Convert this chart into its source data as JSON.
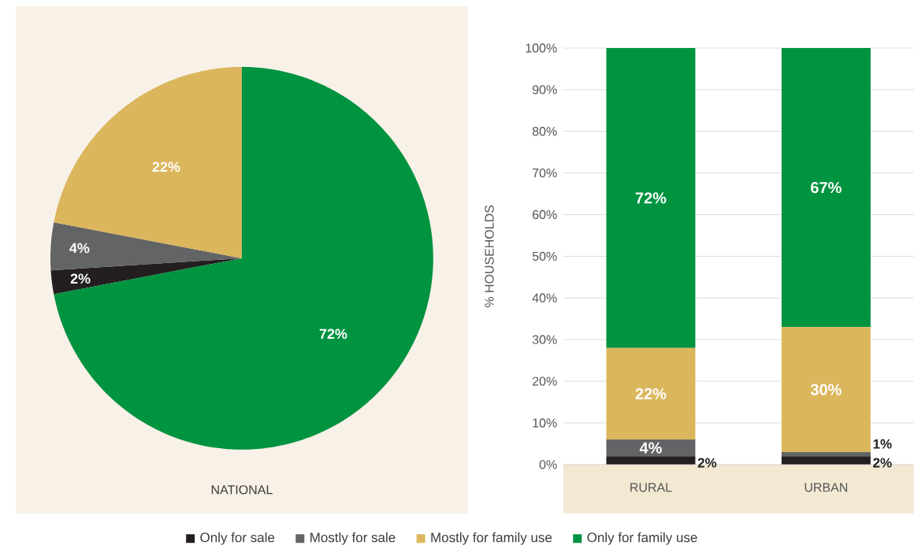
{
  "chart_data": [
    {
      "type": "pie",
      "xlabel": "NATIONAL",
      "categories": [
        "Only for sale",
        "Mostly for sale",
        "Mostly for family use",
        "Only for family use"
      ],
      "values": [
        2,
        4,
        22,
        72
      ],
      "colors": [
        "#231f20",
        "#636466",
        "#dbb65c",
        "#009340"
      ],
      "value_labels": [
        "2%",
        "4%",
        "22%",
        "72%"
      ],
      "legend": "bottom"
    },
    {
      "type": "bar",
      "stacked": true,
      "ylabel": "% HOUSEHOLDS",
      "categories": [
        "RURAL",
        "URBAN"
      ],
      "series": [
        {
          "color": "#231f20",
          "values": [
            2,
            2
          ],
          "value_labels": [
            "2%",
            "2%"
          ]
        },
        {
          "color": "#636466",
          "values": [
            4,
            1
          ],
          "value_labels": [
            "4%",
            "1%"
          ]
        },
        {
          "color": "#dbb65c",
          "values": [
            22,
            30
          ],
          "value_labels": [
            "22%",
            "30%"
          ]
        },
        {
          "color": "#009340",
          "values": [
            72,
            67
          ],
          "value_labels": [
            "72%",
            "67%"
          ]
        }
      ],
      "ylim": [
        0,
        100
      ],
      "yticks": [
        {
          "value": 0,
          "label": "0%"
        },
        {
          "value": 10,
          "label": "10%"
        },
        {
          "value": 20,
          "label": "20%"
        },
        {
          "value": 30,
          "label": "30%"
        },
        {
          "value": 40,
          "label": "40%"
        },
        {
          "value": 50,
          "label": "50%"
        },
        {
          "value": 60,
          "label": "60%"
        },
        {
          "value": 70,
          "label": "70%"
        },
        {
          "value": 80,
          "label": "80%"
        },
        {
          "value": 90,
          "label": "90%"
        },
        {
          "value": 100,
          "label": "100%"
        }
      ],
      "grid": "y"
    }
  ]
}
